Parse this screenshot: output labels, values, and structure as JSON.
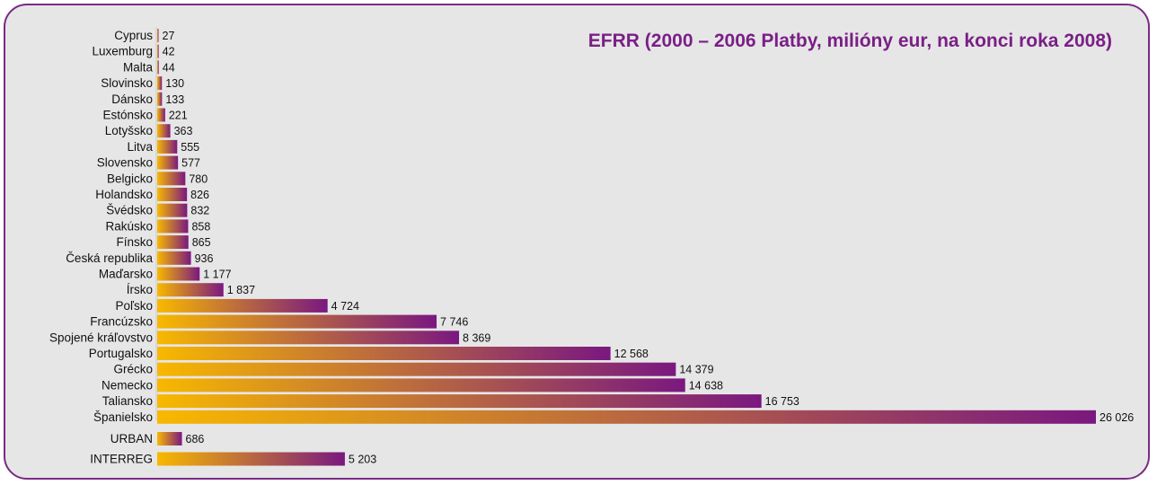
{
  "colors": {
    "bar_start": "#f8b800",
    "bar_end": "#7a1880",
    "frame": "#7a2a84",
    "title": "#7a1f86",
    "background": "#e6e6e6"
  },
  "chart_data": {
    "type": "bar",
    "orientation": "horizontal",
    "title": "EFRR (2000 – 2006 Platby, milióny eur, na konci roka 2008)",
    "xlabel": "",
    "ylabel": "",
    "grid": false,
    "categories": [
      "Cyprus",
      "Luxemburg",
      "Malta",
      "Slovinsko",
      "Dánsko",
      "Estónsko",
      "Lotyšsko",
      "Litva",
      "Slovensko",
      "Belgicko",
      "Holandsko",
      "Švédsko",
      "Rakúsko",
      "Fínsko",
      "Česká republika",
      "Maďarsko",
      "Írsko",
      "Poľsko",
      "Francúzsko",
      "Spojené kráľovstvo",
      "Portugalsko",
      "Grécko",
      "Nemecko",
      "Taliansko",
      "Španielsko"
    ],
    "values": [
      27,
      42,
      44,
      130,
      133,
      221,
      363,
      555,
      577,
      780,
      826,
      832,
      858,
      865,
      936,
      1177,
      1837,
      4724,
      7746,
      8369,
      12568,
      14379,
      14638,
      16753,
      26026
    ],
    "value_labels": [
      "27",
      "42",
      "44",
      "130",
      "133",
      "221",
      "363",
      "555",
      "577",
      "780",
      "826",
      "832",
      "858",
      "865",
      "936",
      "1 177",
      "1 837",
      "4 724",
      "7 746",
      "8 369",
      "12 568",
      "14 379",
      "14 638",
      "16 753",
      "26 026"
    ],
    "extra_categories": [
      "URBAN",
      "INTERREG"
    ],
    "extra_values": [
      686,
      5203
    ],
    "extra_value_labels": [
      "686",
      "5 203"
    ]
  }
}
